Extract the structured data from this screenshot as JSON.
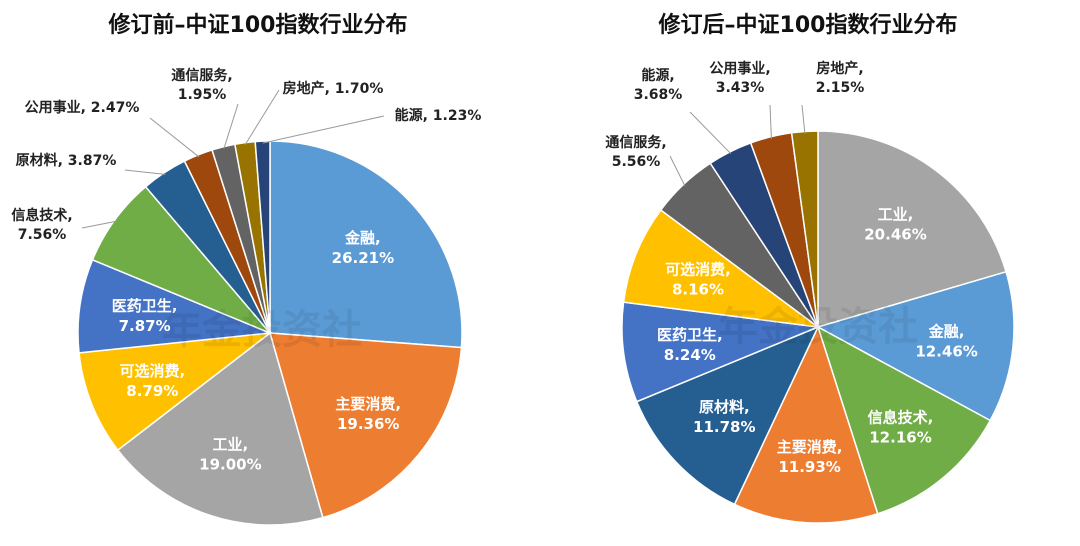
{
  "colors": {
    "金融": "#5B9BD5",
    "主要消费": "#ED7D31",
    "工业": "#A5A5A5",
    "可选消费": "#FFC000",
    "医药卫生": "#4472C4",
    "信息技术": "#70AD47",
    "原材料": "#255E91",
    "公用事业": "#9E480E",
    "通信服务": "#636363",
    "房地产": "#997300",
    "能源": "#264478"
  },
  "chart_data": [
    {
      "type": "pie",
      "title": "修订前–中证100指数行业分布",
      "watermark": "年金投资社",
      "slices": [
        {
          "name": "金融",
          "value": 26.21,
          "label_text": "26.21%",
          "color_key": "金融"
        },
        {
          "name": "主要消费",
          "value": 19.36,
          "label_text": "19.36%",
          "color_key": "主要消费"
        },
        {
          "name": "工业",
          "value": 19.0,
          "label_text": "19.00%",
          "color_key": "工业"
        },
        {
          "name": "可选消费",
          "value": 8.79,
          "label_text": "8.79%",
          "color_key": "可选消费"
        },
        {
          "name": "医药卫生",
          "value": 7.87,
          "label_text": "7.87%",
          "color_key": "医药卫生"
        },
        {
          "name": "信息技术",
          "value": 7.56,
          "label_text": "7.56%",
          "color_key": "信息技术"
        },
        {
          "name": "原材料",
          "value": 3.87,
          "label_text": "3.87%",
          "color_key": "原材料"
        },
        {
          "name": "公用事业",
          "value": 2.47,
          "label_text": "2.47%",
          "color_key": "公用事业"
        },
        {
          "name": "通信服务",
          "value": 1.95,
          "label_text": "1.95%",
          "color_key": "通信服务"
        },
        {
          "name": "房地产",
          "value": 1.7,
          "label_text": "1.70%",
          "color_key": "房地产"
        },
        {
          "name": "能源",
          "value": 1.23,
          "label_text": "1.23%",
          "color_key": "能源"
        }
      ]
    },
    {
      "type": "pie",
      "title": "修订后–中证100指数行业分布",
      "watermark": "年金投资社",
      "slices": [
        {
          "name": "工业",
          "value": 20.46,
          "label_text": "20.46%",
          "color_key": "工业"
        },
        {
          "name": "金融",
          "value": 12.46,
          "label_text": "12.46%",
          "color_key": "金融"
        },
        {
          "name": "信息技术",
          "value": 12.16,
          "label_text": "12.16%",
          "color_key": "信息技术"
        },
        {
          "name": "主要消费",
          "value": 11.93,
          "label_text": "11.93%",
          "color_key": "主要消费"
        },
        {
          "name": "原材料",
          "value": 11.78,
          "label_text": "11.78%",
          "color_key": "原材料"
        },
        {
          "name": "医药卫生",
          "value": 8.24,
          "label_text": "8.24%",
          "color_key": "医药卫生"
        },
        {
          "name": "可选消费",
          "value": 8.16,
          "label_text": "8.16%",
          "color_key": "可选消费"
        },
        {
          "name": "通信服务",
          "value": 5.56,
          "label_text": "5.56%",
          "color_key": "通信服务"
        },
        {
          "name": "能源",
          "value": 3.68,
          "label_text": "3.68%",
          "color_key": "能源"
        },
        {
          "name": "公用事业",
          "value": 3.43,
          "label_text": "3.43%",
          "color_key": "公用事业"
        },
        {
          "name": "房地产",
          "value": 2.15,
          "label_text": "2.15%",
          "color_key": "房地产"
        }
      ]
    }
  ]
}
